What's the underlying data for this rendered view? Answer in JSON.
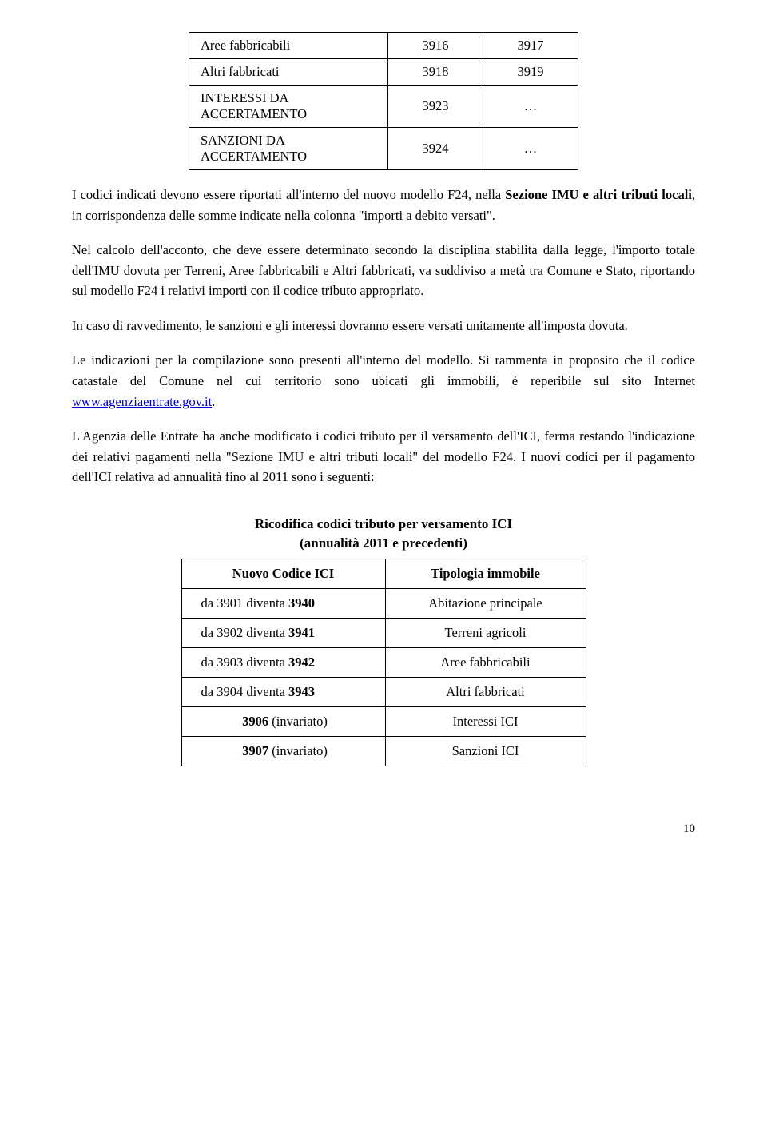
{
  "table1": {
    "rows": [
      {
        "label": "Aree fabbricabili",
        "col1": "3916",
        "col2": "3917"
      },
      {
        "label": "Altri fabbricati",
        "col1": "3918",
        "col2": "3919"
      },
      {
        "label": "INTERESSI DA ACCERTAMENTO",
        "col1": "3923",
        "col2": "…"
      },
      {
        "label": "SANZIONI DA ACCERTAMENTO",
        "col1": "3924",
        "col2": "…"
      }
    ]
  },
  "paragraphs": {
    "p1_a": "I codici indicati devono essere riportati all'interno del nuovo modello F24, nella ",
    "p1_b": "Sezione IMU e altri tributi locali",
    "p1_c": ", in corrispondenza delle somme indicate nella colonna \"importi a debito versati\".",
    "p2": "Nel calcolo dell'acconto, che deve essere determinato secondo la disciplina stabilita dalla legge, l'importo totale dell'IMU dovuta per Terreni, Aree fabbricabili e Altri fabbricati, va suddiviso a metà tra Comune e Stato, riportando sul modello F24 i relativi importi con il codice tributo appropriato.",
    "p3": "In caso di ravvedimento, le sanzioni e gli interessi dovranno essere versati unitamente all'imposta dovuta.",
    "p4_a": "Le indicazioni per la compilazione sono presenti all'interno del modello. Si rammenta in proposito che il codice catastale del Comune nel cui territorio sono ubicati gli immobili, è reperibile sul sito Internet ",
    "p4_link": "www.agenziaentrate.gov.it",
    "p4_b": ".",
    "p5": "L'Agenzia delle Entrate ha anche modificato i codici tributo per il versamento dell'ICI, ferma restando l'indicazione dei relativi pagamenti nella \"Sezione IMU e altri tributi locali\" del modello F24. I nuovi codici per il pagamento dell'ICI relativa ad annualità fino al 2011 sono i seguenti:"
  },
  "table2": {
    "title_line1": "Ricodifica codici tributo per versamento ICI",
    "title_line2": "(annualità 2011 e precedenti)",
    "head_col1": "Nuovo Codice ICI",
    "head_col2": "Tipologia immobile",
    "rows": [
      {
        "c1_pre": "da 3901 diventa ",
        "c1_b": "3940",
        "c2": "Abitazione principale"
      },
      {
        "c1_pre": "da 3902 diventa ",
        "c1_b": "3941",
        "c2": "Terreni agricoli"
      },
      {
        "c1_pre": "da 3903 diventa ",
        "c1_b": "3942",
        "c2": "Aree fabbricabili"
      },
      {
        "c1_pre": "da 3904 diventa ",
        "c1_b": "3943",
        "c2": "Altri fabbricati"
      },
      {
        "c1_pre": "",
        "c1_b": "3906",
        "c1_post": " (invariato)",
        "c2": "Interessi ICI"
      },
      {
        "c1_pre": "",
        "c1_b": "3907",
        "c1_post": " (invariato)",
        "c2": "Sanzioni ICI"
      }
    ]
  },
  "page_number": "10"
}
